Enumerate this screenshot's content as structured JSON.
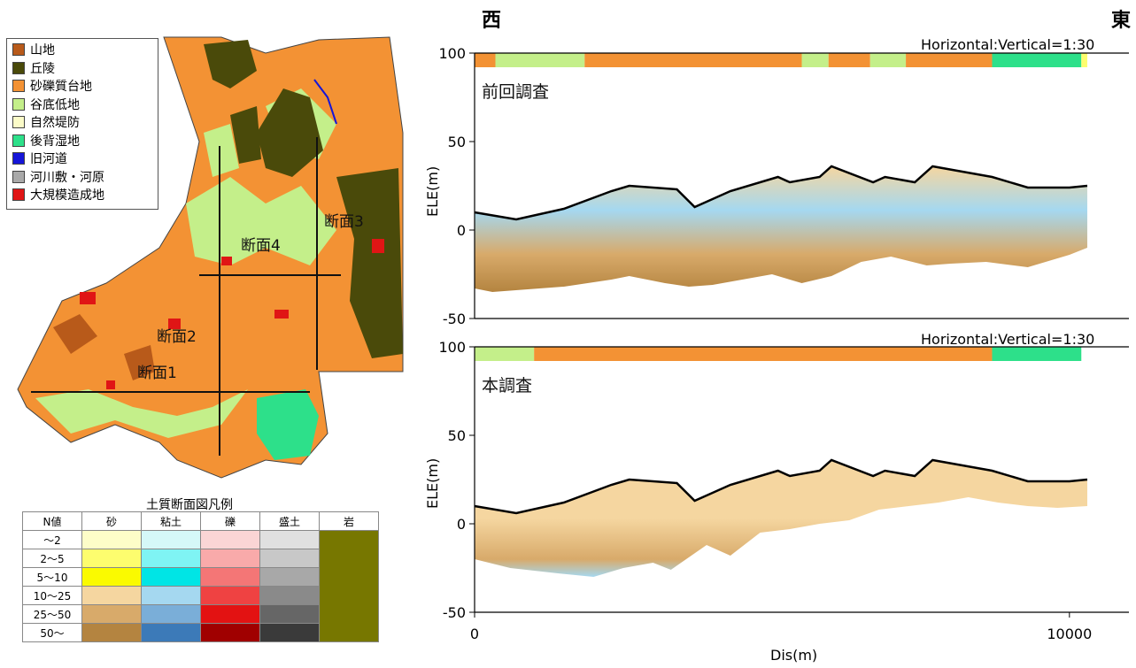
{
  "map": {
    "legend": [
      {
        "label": "山地",
        "color": "#b85a1a"
      },
      {
        "label": "丘陵",
        "color": "#4a4a0a"
      },
      {
        "label": "砂礫質台地",
        "color": "#f39234"
      },
      {
        "label": "谷底低地",
        "color": "#c4ef8a"
      },
      {
        "label": "自然堤防",
        "color": "#fbfbc8"
      },
      {
        "label": "後背湿地",
        "color": "#2de08a"
      },
      {
        "label": "旧河道",
        "color": "#1515d8"
      },
      {
        "label": "河川敷・河原",
        "color": "#a9a9a9"
      },
      {
        "label": "大規模造成地",
        "color": "#e01515"
      }
    ],
    "section_labels": [
      "断面1",
      "断面2",
      "断面3",
      "断面4"
    ]
  },
  "soil_legend": {
    "title": "土質断面図凡例",
    "headers": [
      "N値",
      "砂",
      "粘土",
      "礫",
      "盛土",
      "岩"
    ],
    "rows": [
      {
        "n": "～2",
        "colors": [
          "#fdfdc8",
          "#d5f8f8",
          "#fad5d5",
          "#e0e0e0"
        ]
      },
      {
        "n": "2～5",
        "colors": [
          "#fdfd6e",
          "#7ff4f4",
          "#f9aaaa",
          "#c8c8c8"
        ]
      },
      {
        "n": "5～10",
        "colors": [
          "#fafa00",
          "#00e5e5",
          "#f47676",
          "#a8a8a8"
        ]
      },
      {
        "n": "10～25",
        "colors": [
          "#f5d6a0",
          "#a5d8f0",
          "#ef4242",
          "#8a8a8a"
        ]
      },
      {
        "n": "25～50",
        "colors": [
          "#d8aa6a",
          "#7aaed8",
          "#e31212",
          "#666666"
        ]
      },
      {
        "n": "50～",
        "colors": [
          "#b48440",
          "#3c7ab8",
          "#a00000",
          "#3a3a3a"
        ]
      }
    ],
    "rock_color": "#777700"
  },
  "profiles": {
    "west_label": "西",
    "east_label": "東",
    "ratio_label": "Horizontal:Vertical=1:30",
    "xlabel": "Dis(m)",
    "ylabel": "ELE(m)"
  },
  "chart_data": [
    {
      "type": "area",
      "title": "前回調査",
      "xlabel": "Dis(m)",
      "ylabel": "ELE(m)",
      "xlim": [
        0,
        11000
      ],
      "ylim": [
        -50,
        100
      ],
      "x_ticks": [
        0,
        10000
      ],
      "y_ticks": [
        -50,
        0,
        50,
        100
      ],
      "ratio_label": "Horizontal:Vertical=1:30",
      "surface": {
        "x": [
          0,
          700,
          1500,
          2300,
          2600,
          3400,
          3700,
          4300,
          5100,
          5300,
          5800,
          6000,
          6700,
          6900,
          7400,
          7700,
          8200,
          8700,
          9300,
          10000,
          10300
        ],
        "y": [
          10,
          6,
          12,
          22,
          25,
          23,
          13,
          22,
          30,
          27,
          30,
          36,
          27,
          30,
          27,
          36,
          33,
          30,
          24,
          24,
          25
        ]
      },
      "bottom": {
        "x": [
          0,
          300,
          1500,
          1900,
          2300,
          2600,
          3200,
          3600,
          4000,
          4500,
          5000,
          5500,
          6000,
          6500,
          7000,
          7600,
          8000,
          8600,
          9300,
          10000,
          10300
        ],
        "y": [
          -33,
          -35,
          -32,
          -30,
          -28,
          -26,
          -30,
          -32,
          -31,
          -28,
          -25,
          -30,
          -26,
          -18,
          -15,
          -20,
          -19,
          -18,
          -21,
          -14,
          -10
        ]
      },
      "geomorphology_bar": [
        {
          "from": 0,
          "to": 350,
          "color": "#f39234"
        },
        {
          "from": 350,
          "to": 1850,
          "color": "#c4ef8a"
        },
        {
          "from": 1850,
          "to": 5500,
          "color": "#f39234"
        },
        {
          "from": 5500,
          "to": 5950,
          "color": "#c4ef8a"
        },
        {
          "from": 5950,
          "to": 6650,
          "color": "#f39234"
        },
        {
          "from": 6650,
          "to": 7250,
          "color": "#c4ef8a"
        },
        {
          "from": 7250,
          "to": 8700,
          "color": "#f39234"
        },
        {
          "from": 8700,
          "to": 10200,
          "color": "#2de08a"
        },
        {
          "from": 10200,
          "to": 10300,
          "color": "#fdfd6e"
        }
      ]
    },
    {
      "type": "area",
      "title": "本調査",
      "xlabel": "Dis(m)",
      "ylabel": "ELE(m)",
      "xlim": [
        0,
        11000
      ],
      "ylim": [
        -50,
        100
      ],
      "x_ticks": [
        0,
        10000
      ],
      "y_ticks": [
        -50,
        0,
        50,
        100
      ],
      "ratio_label": "Horizontal:Vertical=1:30",
      "surface": {
        "x": [
          0,
          700,
          1500,
          2300,
          2600,
          3400,
          3700,
          4300,
          5100,
          5300,
          5800,
          6000,
          6700,
          6900,
          7400,
          7700,
          8200,
          8700,
          9300,
          10000,
          10300
        ],
        "y": [
          10,
          6,
          12,
          22,
          25,
          23,
          13,
          22,
          30,
          27,
          30,
          36,
          27,
          30,
          27,
          36,
          33,
          30,
          24,
          24,
          25
        ]
      },
      "bottom": {
        "x": [
          0,
          600,
          1400,
          2000,
          2500,
          3000,
          3300,
          3900,
          4300,
          4800,
          5300,
          5800,
          6300,
          6800,
          7300,
          7800,
          8300,
          8800,
          9300,
          9800,
          10300
        ],
        "y": [
          -20,
          -25,
          -28,
          -30,
          -25,
          -22,
          -26,
          -12,
          -18,
          -5,
          -3,
          0,
          2,
          8,
          10,
          12,
          15,
          12,
          10,
          9,
          10
        ]
      },
      "geomorphology_bar": [
        {
          "from": 0,
          "to": 1000,
          "color": "#c4ef8a"
        },
        {
          "from": 1000,
          "to": 8700,
          "color": "#f39234"
        },
        {
          "from": 8700,
          "to": 10200,
          "color": "#2de08a"
        }
      ]
    }
  ]
}
